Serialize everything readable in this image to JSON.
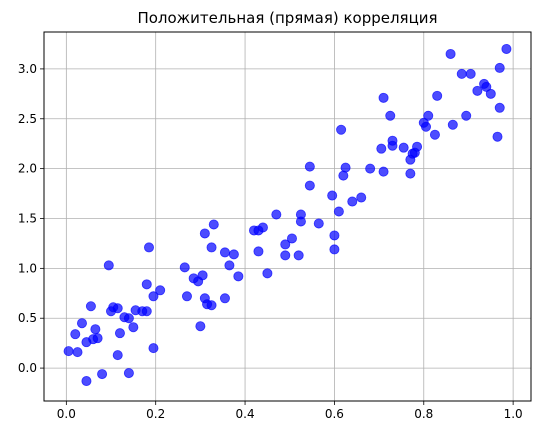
{
  "chart_data": {
    "type": "scatter",
    "title": "Положительная (прямая) корреляция",
    "xlabel": "",
    "ylabel": "",
    "xlim": [
      -0.05,
      1.04
    ],
    "ylim": [
      -0.33,
      3.37
    ],
    "x_ticks": [
      0.0,
      0.2,
      0.4,
      0.6,
      0.8,
      1.0
    ],
    "x_tick_labels": [
      "0.0",
      "0.2",
      "0.4",
      "0.6",
      "0.8",
      "1.0"
    ],
    "y_ticks": [
      0.0,
      0.5,
      1.0,
      1.5,
      2.0,
      2.5,
      3.0
    ],
    "y_tick_labels": [
      "0.0",
      "0.5",
      "1.0",
      "1.5",
      "2.0",
      "2.5",
      "3.0"
    ],
    "grid": true,
    "marker_color": "#0000ff",
    "marker_alpha": 0.7,
    "series": [
      {
        "x": [
          0.005,
          0.025,
          0.02,
          0.035,
          0.045,
          0.055,
          0.06,
          0.065,
          0.07,
          0.045,
          0.08,
          0.095,
          0.1,
          0.105,
          0.115,
          0.12,
          0.13,
          0.115,
          0.14,
          0.155,
          0.15,
          0.17,
          0.18,
          0.18,
          0.195,
          0.195,
          0.21,
          0.185,
          0.14,
          0.265,
          0.27,
          0.285,
          0.295,
          0.3,
          0.31,
          0.305,
          0.315,
          0.31,
          0.33,
          0.325,
          0.325,
          0.355,
          0.355,
          0.365,
          0.375,
          0.385,
          0.42,
          0.43,
          0.44,
          0.43,
          0.45,
          0.47,
          0.49,
          0.49,
          0.505,
          0.52,
          0.525,
          0.525,
          0.545,
          0.545,
          0.565,
          0.595,
          0.6,
          0.6,
          0.61,
          0.615,
          0.62,
          0.625,
          0.64,
          0.66,
          0.68,
          0.705,
          0.71,
          0.71,
          0.725,
          0.73,
          0.73,
          0.755,
          0.77,
          0.77,
          0.775,
          0.78,
          0.785,
          0.8,
          0.805,
          0.81,
          0.825,
          0.83,
          0.86,
          0.865,
          0.885,
          0.895,
          0.905,
          0.92,
          0.935,
          0.94,
          0.95,
          0.965,
          0.97,
          0.97,
          0.985
        ],
        "y": [
          0.17,
          0.16,
          0.34,
          0.45,
          0.26,
          0.62,
          0.29,
          0.39,
          0.3,
          -0.13,
          -0.06,
          1.03,
          0.57,
          0.61,
          0.13,
          0.35,
          0.51,
          0.6,
          -0.05,
          0.58,
          0.41,
          0.57,
          0.57,
          0.84,
          0.72,
          0.2,
          0.78,
          1.21,
          0.5,
          1.01,
          0.72,
          0.9,
          0.87,
          0.42,
          0.7,
          0.93,
          0.64,
          1.35,
          1.44,
          0.63,
          1.21,
          0.7,
          1.16,
          1.03,
          1.14,
          0.92,
          1.38,
          1.17,
          1.41,
          1.38,
          0.95,
          1.54,
          1.13,
          1.24,
          1.3,
          1.13,
          1.54,
          1.47,
          2.02,
          1.83,
          1.45,
          1.73,
          1.33,
          1.19,
          1.57,
          2.39,
          1.93,
          2.01,
          1.67,
          1.71,
          2.0,
          2.2,
          2.71,
          1.97,
          2.53,
          2.28,
          2.23,
          2.21,
          2.09,
          1.95,
          2.15,
          2.16,
          2.22,
          2.46,
          2.42,
          2.53,
          2.34,
          2.73,
          3.15,
          2.44,
          2.95,
          2.53,
          2.95,
          2.78,
          2.85,
          2.82,
          2.75,
          2.32,
          3.01,
          2.61,
          3.2
        ]
      }
    ]
  }
}
